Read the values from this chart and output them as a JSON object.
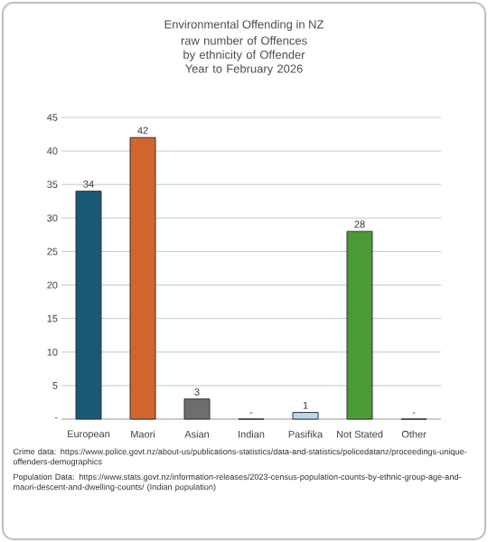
{
  "chart_data": {
    "type": "bar",
    "title": "Environmental Offending in NZ",
    "subtitle": "raw number of Offences by ethnicity of Offender Year to February 2026",
    "categories": [
      "European",
      "Maori",
      "Asian",
      "Indian",
      "Pasifika",
      "Not Stated",
      "Other"
    ],
    "values": [
      34,
      42,
      3,
      0,
      1,
      28,
      0
    ],
    "colors": [
      "#1b5875",
      "#d1662c",
      "#6e6e6e",
      "#9e9e9e",
      "#bcd6ef",
      "#4b9a35",
      "#9e9e9e"
    ],
    "value_labels": [
      "34",
      "42",
      "3",
      "-",
      "1",
      "28",
      "-"
    ],
    "ylim": [
      0,
      45
    ],
    "yticks": [
      {
        "value": 0,
        "label": "-"
      },
      5,
      10,
      15,
      20,
      25,
      30,
      35,
      40,
      45
    ],
    "grid": "y",
    "annotations": [
      "Crime data: https://www.police.govt.nz/about-us/publications-statistics/data-and-statistics/policedatanz/proceedings-unique-offenders-demographics",
      "Population Data: https://www.stats.govt.nz/information-releases/2023-census-population-counts-by-ethnic-group-age-and-maori-descent-and-dwelling-counts/ (Indian population)"
    ]
  }
}
